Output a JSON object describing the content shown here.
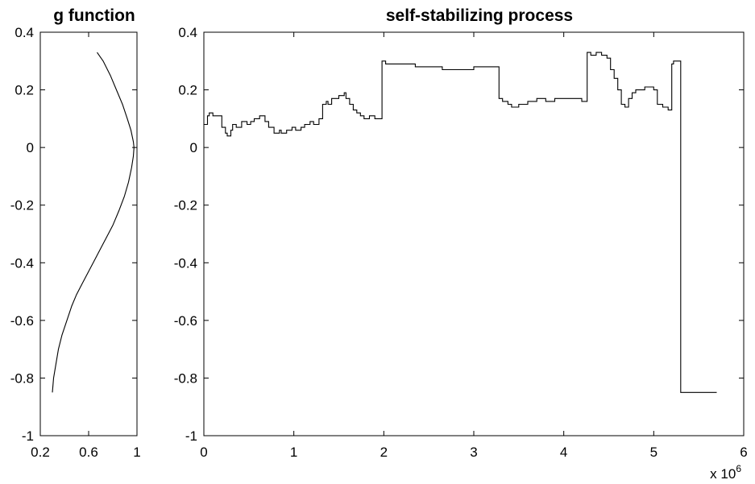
{
  "chart_data": [
    {
      "type": "line",
      "title": "g function",
      "xlabel": "",
      "ylabel": "",
      "xlim": [
        0.2,
        1.0
      ],
      "ylim": [
        -1,
        0.4
      ],
      "xticks": [
        "0.2",
        "0.6",
        "1"
      ],
      "xtick_values": [
        0.2,
        0.6,
        1.0
      ],
      "yticks": [
        "0.4",
        "0.2",
        "0",
        "-0.2",
        "-0.4",
        "-0.6",
        "-0.8",
        "-1"
      ],
      "ytick_values": [
        0.4,
        0.2,
        0,
        -0.2,
        -0.4,
        -0.6,
        -0.8,
        -1
      ],
      "grid": false,
      "series": [
        {
          "x": [
            0.67,
            0.72,
            0.78,
            0.83,
            0.88,
            0.92,
            0.95,
            0.97,
            0.975,
            0.97,
            0.955,
            0.93,
            0.895,
            0.85,
            0.8,
            0.75,
            0.7,
            0.65,
            0.6,
            0.55,
            0.5,
            0.46,
            0.42,
            0.38,
            0.35,
            0.33,
            0.31,
            0.3
          ],
          "y": [
            0.33,
            0.3,
            0.25,
            0.2,
            0.15,
            0.1,
            0.06,
            0.02,
            0.0,
            -0.03,
            -0.07,
            -0.12,
            -0.17,
            -0.22,
            -0.27,
            -0.31,
            -0.35,
            -0.39,
            -0.43,
            -0.47,
            -0.51,
            -0.55,
            -0.6,
            -0.65,
            -0.7,
            -0.75,
            -0.8,
            -0.85
          ]
        }
      ]
    },
    {
      "type": "line",
      "title": "self-stabilizing process",
      "xlabel": "",
      "ylabel": "",
      "x_multiplier": "x 10",
      "x_multiplier_exp": "6",
      "xlim": [
        0,
        6
      ],
      "ylim": [
        -1,
        0.4
      ],
      "xticks": [
        "0",
        "1",
        "2",
        "3",
        "4",
        "5",
        "6"
      ],
      "xtick_values": [
        0,
        1,
        2,
        3,
        4,
        5,
        6
      ],
      "yticks": [
        "0.4",
        "0.2",
        "0",
        "-0.2",
        "-0.4",
        "-0.6",
        "-0.8",
        "-1"
      ],
      "ytick_values": [
        0.4,
        0.2,
        0,
        -0.2,
        -0.4,
        -0.6,
        -0.8,
        -1
      ],
      "grid": false,
      "series": [
        {
          "step": true,
          "x": [
            0,
            0.04,
            0.06,
            0.1,
            0.2,
            0.24,
            0.26,
            0.3,
            0.32,
            0.36,
            0.42,
            0.48,
            0.52,
            0.56,
            0.62,
            0.68,
            0.72,
            0.78,
            0.84,
            0.86,
            0.92,
            0.98,
            1.02,
            1.08,
            1.12,
            1.18,
            1.22,
            1.28,
            1.32,
            1.36,
            1.38,
            1.42,
            1.5,
            1.56,
            1.58,
            1.62,
            1.66,
            1.7,
            1.74,
            1.78,
            1.84,
            1.9,
            1.94,
            1.98,
            2.02,
            2.2,
            2.35,
            2.5,
            2.65,
            2.8,
            2.9,
            3.0,
            3.1,
            3.2,
            3.26,
            3.28,
            3.32,
            3.38,
            3.42,
            3.5,
            3.6,
            3.7,
            3.8,
            3.9,
            4.0,
            4.1,
            4.2,
            4.26,
            4.3,
            4.36,
            4.42,
            4.48,
            4.52,
            4.56,
            4.6,
            4.64,
            4.68,
            4.72,
            4.76,
            4.8,
            4.84,
            4.9,
            5.0,
            5.04,
            5.06,
            5.1,
            5.16,
            5.2,
            5.22,
            5.3,
            5.7
          ],
          "y": [
            0.08,
            0.11,
            0.12,
            0.11,
            0.07,
            0.05,
            0.04,
            0.06,
            0.08,
            0.07,
            0.09,
            0.08,
            0.09,
            0.1,
            0.11,
            0.09,
            0.07,
            0.05,
            0.06,
            0.05,
            0.06,
            0.07,
            0.06,
            0.07,
            0.08,
            0.09,
            0.08,
            0.1,
            0.15,
            0.16,
            0.15,
            0.17,
            0.18,
            0.19,
            0.17,
            0.15,
            0.13,
            0.12,
            0.11,
            0.1,
            0.11,
            0.1,
            0.1,
            0.3,
            0.29,
            0.29,
            0.28,
            0.28,
            0.27,
            0.27,
            0.27,
            0.28,
            0.28,
            0.28,
            0.28,
            0.17,
            0.16,
            0.15,
            0.14,
            0.15,
            0.16,
            0.17,
            0.16,
            0.17,
            0.17,
            0.17,
            0.16,
            0.33,
            0.32,
            0.33,
            0.32,
            0.31,
            0.27,
            0.24,
            0.2,
            0.15,
            0.14,
            0.17,
            0.19,
            0.2,
            0.2,
            0.21,
            0.2,
            0.15,
            0.15,
            0.14,
            0.13,
            0.29,
            0.3,
            -0.85,
            -0.85
          ]
        }
      ]
    }
  ]
}
